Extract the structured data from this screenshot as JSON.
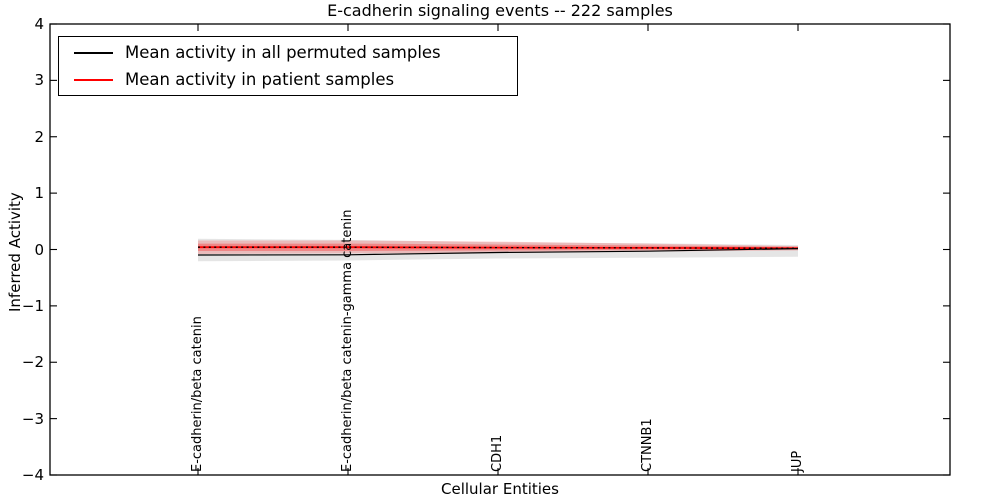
{
  "title": "E-cadherin signaling events -- 222 samples",
  "axes": {
    "x_label": "Cellular Entities",
    "y_label": "Inferred Activity",
    "y_ticks": [
      "4",
      "3",
      "2",
      "1",
      "0",
      "−1",
      "−2",
      "−3",
      "−4"
    ],
    "y_tick_values": [
      4,
      3,
      2,
      1,
      0,
      -1,
      -2,
      -3,
      -4
    ]
  },
  "legend": {
    "items": [
      {
        "label": "Mean activity in all permuted samples",
        "color": "#000000"
      },
      {
        "label": "Mean activity in patient samples",
        "color": "#ff0000"
      }
    ]
  },
  "chart_data": {
    "type": "line",
    "title": "E-cadherin signaling events -- 222 samples",
    "xlabel": "Cellular Entities",
    "ylabel": "Inferred Activity",
    "ylim": [
      -4,
      4
    ],
    "grid": false,
    "legend_position": "upper left",
    "categories": [
      "E-cadherin/beta catenin",
      "E-cadherin/beta catenin-gamma catenin",
      "CDH1",
      "CTNNB1",
      "JUP"
    ],
    "series": [
      {
        "name": "Mean activity in all permuted samples",
        "color": "#000000",
        "line_style": "solid",
        "values": [
          -0.098,
          -0.094,
          -0.053,
          -0.03,
          0.016
        ],
        "band": {
          "label": "permuted-std-band",
          "color": "rgba(0,0,0,0.10)",
          "upper": [
            0.19,
            0.17,
            0.13,
            0.11,
            0.08
          ],
          "lower": [
            -0.21,
            -0.195,
            -0.16,
            -0.145,
            -0.13
          ]
        }
      },
      {
        "name": "Mean activity in patient samples",
        "color": "#ff0000",
        "line_style": "solid",
        "overlay_dotted": true,
        "overlay_color": "#000000",
        "values": [
          0.04,
          0.04,
          0.034,
          0.028,
          0.021
        ],
        "band": {
          "label": "patient-std-band",
          "color": "rgba(255,0,0,0.18)",
          "upper": [
            0.16,
            0.16,
            0.14,
            0.105,
            0.06
          ],
          "lower": [
            -0.08,
            -0.07,
            -0.062,
            -0.036,
            -0.018
          ]
        },
        "inner_band": {
          "label": "patient-inner-band",
          "color": "rgba(255,0,0,0.28)",
          "upper": [
            0.105,
            0.105,
            0.089,
            0.071,
            0.048
          ],
          "lower": [
            -0.027,
            -0.027,
            -0.018,
            -0.005,
            0.006
          ]
        }
      }
    ]
  }
}
